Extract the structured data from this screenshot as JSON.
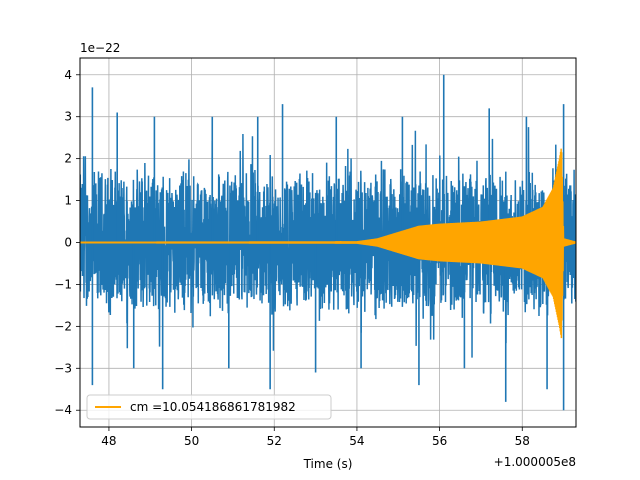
{
  "chart_data": {
    "type": "line",
    "title": "",
    "xlabel": "Time (s)",
    "ylabel": "",
    "x_offset_label": "+1.000005e8",
    "y_scale_label": "1e−22",
    "xlim": [
      47.3,
      59.3
    ],
    "ylim": [
      -4.4,
      4.4
    ],
    "xticks": [
      48,
      50,
      52,
      54,
      56,
      58
    ],
    "xtick_labels": [
      "48",
      "50",
      "52",
      "54",
      "56",
      "58"
    ],
    "yticks": [
      -4,
      -3,
      -2,
      -1,
      0,
      1,
      2,
      3,
      4
    ],
    "ytick_labels": [
      "−4",
      "−3",
      "−2",
      "−1",
      "0",
      "1",
      "2",
      "3",
      "4"
    ],
    "grid": true,
    "legend_position": "lower-left",
    "series": [
      {
        "name": "",
        "color": "#1f77b4",
        "kind": "noise",
        "x_range": [
          47.3,
          59.3
        ],
        "typical_envelope": 1.5,
        "peaks": [
          {
            "x": 47.6,
            "y": 3.7
          },
          {
            "x": 47.6,
            "y": -3.4
          },
          {
            "x": 48.2,
            "y": 3.1
          },
          {
            "x": 48.6,
            "y": -3.0
          },
          {
            "x": 49.1,
            "y": 3.0
          },
          {
            "x": 49.3,
            "y": -3.5
          },
          {
            "x": 50.5,
            "y": 3.0
          },
          {
            "x": 50.9,
            "y": -3.0
          },
          {
            "x": 51.6,
            "y": 3.0
          },
          {
            "x": 51.9,
            "y": -3.5
          },
          {
            "x": 52.2,
            "y": 3.3
          },
          {
            "x": 53.0,
            "y": -3.1
          },
          {
            "x": 53.5,
            "y": 3.0
          },
          {
            "x": 54.1,
            "y": -3.0
          },
          {
            "x": 55.1,
            "y": 3.0
          },
          {
            "x": 55.5,
            "y": -3.4
          },
          {
            "x": 56.1,
            "y": 4.0
          },
          {
            "x": 56.6,
            "y": -3.0
          },
          {
            "x": 57.2,
            "y": 3.2
          },
          {
            "x": 57.6,
            "y": -3.8
          },
          {
            "x": 58.1,
            "y": 3.0
          },
          {
            "x": 58.6,
            "y": -3.5
          },
          {
            "x": 59.0,
            "y": 3.3
          },
          {
            "x": 59.0,
            "y": -4.0
          }
        ]
      },
      {
        "name": "cm =10.054186861781982",
        "color": "#ffa500",
        "kind": "chirp",
        "envelope": [
          {
            "x": 47.3,
            "y": 0.02
          },
          {
            "x": 54.0,
            "y": 0.03
          },
          {
            "x": 54.5,
            "y": 0.1
          },
          {
            "x": 55.0,
            "y": 0.25
          },
          {
            "x": 55.5,
            "y": 0.4
          },
          {
            "x": 56.0,
            "y": 0.45
          },
          {
            "x": 57.0,
            "y": 0.5
          },
          {
            "x": 58.0,
            "y": 0.62
          },
          {
            "x": 58.5,
            "y": 0.85
          },
          {
            "x": 58.75,
            "y": 1.3
          },
          {
            "x": 58.9,
            "y": 2.0
          },
          {
            "x": 58.95,
            "y": 2.3
          },
          {
            "x": 59.0,
            "y": 0.1
          },
          {
            "x": 59.3,
            "y": 0.02
          }
        ]
      }
    ]
  }
}
